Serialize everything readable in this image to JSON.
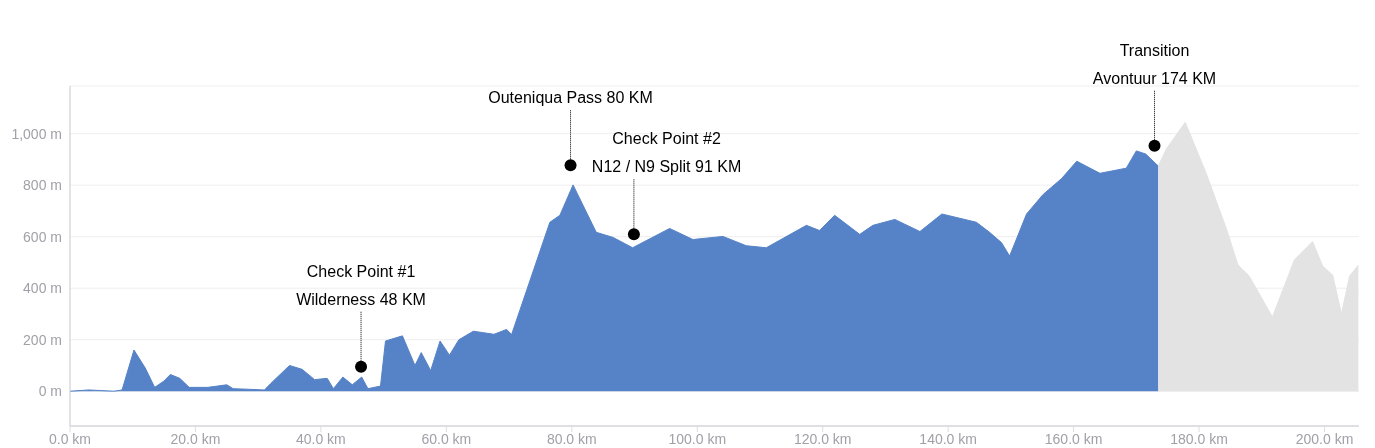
{
  "chart_data": {
    "type": "area",
    "xlim": [
      0,
      205.5
    ],
    "ylim": [
      -135,
      1185
    ],
    "xticks": [
      {
        "value": 0,
        "label": "0.0 km"
      },
      {
        "value": 20,
        "label": "20.0 km"
      },
      {
        "value": 40,
        "label": "40.0 km"
      },
      {
        "value": 60,
        "label": "60.0 km"
      },
      {
        "value": 80,
        "label": "80.0 km"
      },
      {
        "value": 100,
        "label": "100.0 km"
      },
      {
        "value": 120,
        "label": "120.0 km"
      },
      {
        "value": 140,
        "label": "140.0 km"
      },
      {
        "value": 160,
        "label": "160.0 km"
      },
      {
        "value": 180,
        "label": "180.0 km"
      },
      {
        "value": 200,
        "label": "200.0 km"
      }
    ],
    "yticks": [
      {
        "value": 0,
        "label": "0 m"
      },
      {
        "value": 200,
        "label": "200 m"
      },
      {
        "value": 400,
        "label": "400 m"
      },
      {
        "value": 600,
        "label": "600 m"
      },
      {
        "value": 800,
        "label": "800 m"
      },
      {
        "value": 1000,
        "label": "1,000 m"
      }
    ],
    "grid": "y",
    "series": [
      {
        "color": "#5683c7",
        "x": [
          0,
          3,
          7,
          8.3,
          10.2,
          12,
          13.5,
          15,
          16,
          17.5,
          19,
          22,
          25,
          26,
          31,
          32,
          35,
          37,
          39,
          41,
          42,
          43.5,
          45,
          46.5,
          47.5,
          49.5,
          50.3,
          53,
          55,
          56,
          57.5,
          59,
          60.5,
          62,
          64.3,
          67.6,
          69.6,
          70.4,
          76.5,
          78.1,
          80.2,
          83.9,
          86.6,
          89.7,
          95.6,
          99.3,
          104.1,
          107.8,
          111,
          117.4,
          119.5,
          121.9,
          125.9,
          128,
          131.5,
          135.5,
          139,
          144.5,
          146.6,
          148.5,
          149.8,
          152.5,
          155.1,
          158.1,
          160.5,
          164.2,
          168.4,
          170,
          171.5,
          173.5
        ],
        "values": [
          0,
          5,
          0,
          5,
          160,
          90,
          15,
          40,
          65,
          50,
          15,
          15,
          25,
          10,
          5,
          30,
          100,
          85,
          45,
          50,
          10,
          55,
          25,
          55,
          10,
          20,
          195,
          215,
          100,
          150,
          80,
          195,
          140,
          200,
          233,
          221,
          240,
          220,
          656,
          683,
          801,
          617,
          597,
          557,
          632,
          589,
          601,
          565,
          557,
          644,
          624,
          683,
          609,
          644,
          667,
          620,
          688,
          656,
          617,
          577,
          525,
          688,
          763,
          826,
          893,
          846,
          866,
          933,
          921,
          874
        ]
      },
      {
        "color": "#e3e3e3",
        "x": [
          173.5,
          174.8,
          177.8,
          181.2,
          184.4,
          186.2,
          188,
          191.7,
          195.2,
          198.1,
          199.7,
          201.3,
          202.7,
          204,
          205.4
        ],
        "values": [
          874,
          941,
          1044,
          842,
          628,
          490,
          447,
          288,
          510,
          581,
          486,
          451,
          300,
          447,
          490
        ]
      }
    ],
    "annotations": [
      {
        "text": "Check Point #1\nWilderness 48 KM",
        "x": 46.4,
        "y": 95
      },
      {
        "text": "Outeniqua Pass 80 KM",
        "x": 79.8,
        "y": 877
      },
      {
        "text": "Check Point #2\nN12 / N9 Split 91 KM",
        "x": 89.9,
        "y": 609
      },
      {
        "text": "Transition\nAvontuur 174 KM",
        "x": 172.9,
        "y": 953
      }
    ]
  }
}
